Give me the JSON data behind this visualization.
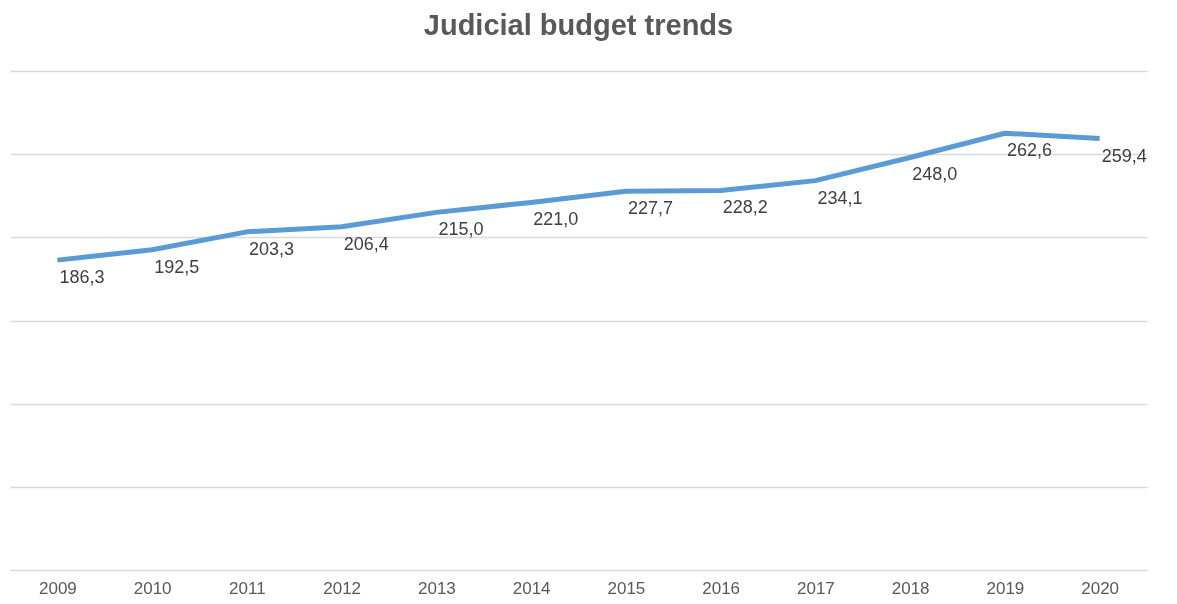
{
  "chart_data": {
    "type": "line",
    "title": "Judicial budget trends",
    "categories": [
      "2009",
      "2010",
      "2011",
      "2012",
      "2013",
      "2014",
      "2015",
      "2016",
      "2017",
      "2018",
      "2019",
      "2020"
    ],
    "series": [
      {
        "color": "#5b9bd5",
        "values": [
          186.3,
          192.5,
          203.3,
          206.4,
          215.0,
          221.0,
          227.7,
          228.2,
          234.1,
          248.0,
          262.6,
          259.4
        ],
        "value_labels": [
          "186,3",
          "192,5",
          "203,3",
          "206,4",
          "215,0",
          "221,0",
          "227,7",
          "228,2",
          "234,1",
          "248,0",
          "262,6",
          "259,4"
        ]
      }
    ],
    "ylim": [
      0,
      300
    ],
    "yticks": [
      {
        "value": 0,
        "label": null
      },
      {
        "value": 50,
        "label": null
      },
      {
        "value": 100,
        "label": null
      },
      {
        "value": 150,
        "label": null
      },
      {
        "value": 200,
        "label": null
      },
      {
        "value": 250,
        "label": null
      },
      {
        "value": 300,
        "label": null
      }
    ],
    "tick_labels": "x",
    "grid": "y",
    "marker": "none",
    "line_style": "solid"
  }
}
